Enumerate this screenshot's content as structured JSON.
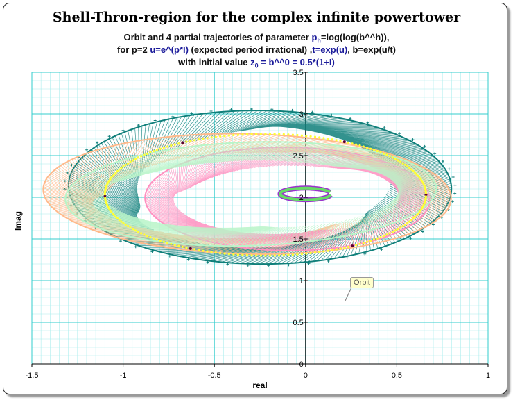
{
  "chart_data": {
    "type": "scatter",
    "title": "Shell-Thron-region for the complex infinite powertower",
    "subtitle_lines": [
      [
        "Orbit and 4 partial trajectories of parameter ",
        "p",
        "h",
        "=log(log(b^^h)),"
      ],
      [
        "for p=2 ",
        "u=e^(p*I)",
        " (expected period irrational) ,",
        "t=exp(u)",
        ", b=exp(u/t)"
      ],
      [
        "with initial value ",
        "z",
        "0",
        " = b^^0 = 0.5*(1+I)"
      ]
    ],
    "xlabel": "real",
    "ylabel": "Imag",
    "xlim": [
      -1.5,
      1
    ],
    "ylim": [
      0,
      3.5
    ],
    "xticks": [
      "-1.5",
      "-1",
      "-0.5",
      "0",
      "0.5",
      "1"
    ],
    "yticks": [
      "0",
      "0.5",
      "1",
      "1.5",
      "2",
      "2.5",
      "3",
      "3.5"
    ],
    "series": [
      {
        "color": "#0f7f7a",
        "center": [
          -0.25,
          2.12
        ],
        "rx": 1.05,
        "ry": 0.92,
        "tilt": -0.07
      },
      {
        "color": "#ffb98a",
        "center": [
          -0.32,
          2.04
        ],
        "rx": 1.12,
        "ry": 0.72,
        "tilt": -0.08
      },
      {
        "color": "#ff8fc0",
        "center": [
          -0.1,
          1.98
        ],
        "rx": 0.78,
        "ry": 0.62,
        "tilt": -0.04
      },
      {
        "color": "#b8f5c8",
        "center": [
          -0.3,
          2.04
        ],
        "rx": 1.02,
        "ry": 0.62,
        "tilt": 0.1
      }
    ],
    "orbit": {
      "center": [
        -0.22,
        2.03
      ],
      "rx": 0.88,
      "ry": 0.73,
      "color": "#ffff33"
    },
    "inner_ring": {
      "center": [
        0.0,
        2.04
      ],
      "rx": 0.14,
      "ry": 0.07,
      "color": "#66dd66"
    },
    "annotation": "Orbit",
    "colors": {
      "major_grid": "#33cccc",
      "minor_grid": "#aaeeee"
    }
  }
}
